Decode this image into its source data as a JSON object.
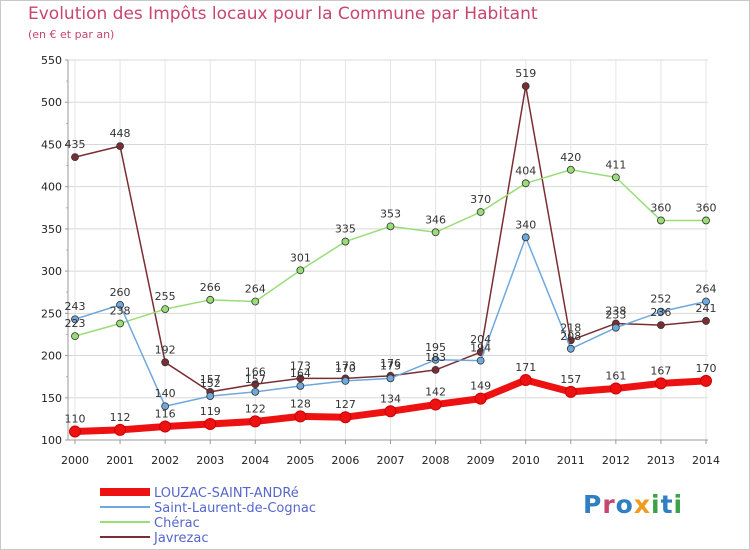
{
  "title": "Evolution des Impôts locaux pour la Commune par Habitant",
  "subtitle": "(en € et par an)",
  "logo": "Proxiti",
  "logo_colors": [
    "#2f7fc1",
    "#f29a1d",
    "#3aa345",
    "#c8456e"
  ],
  "chart_data": {
    "type": "line",
    "x": [
      "2000",
      "2001",
      "2002",
      "2003",
      "2004",
      "2005",
      "2006",
      "2007",
      "2008",
      "2009",
      "2010",
      "2011",
      "2012",
      "2013",
      "2014"
    ],
    "yticks": [
      "100",
      "150",
      "200",
      "250",
      "300",
      "350",
      "400",
      "450",
      "500",
      "550"
    ],
    "ylim": [
      100,
      550
    ],
    "grid": true,
    "legend_position": "bottom-left",
    "series": [
      {
        "name": "LOUZAC-SAINT-ANDRé",
        "color": "#ee1111",
        "values": [
          110,
          112,
          116,
          119,
          122,
          128,
          127,
          134,
          142,
          149,
          171,
          157,
          161,
          167,
          170
        ],
        "labels": [
          "110",
          "112",
          "116",
          "119",
          "122",
          "128",
          "127",
          "134",
          "142",
          "149",
          "171",
          "157",
          "161",
          "167",
          "170"
        ]
      },
      {
        "name": "Saint-Laurent-de-Cognac",
        "color": "#6fa8dc",
        "values": [
          243,
          260,
          140,
          152,
          157,
          164,
          170,
          173,
          195,
          194,
          340,
          208,
          233,
          252,
          264
        ],
        "labels": [
          "243",
          "260",
          "140",
          "152",
          "157",
          "164",
          "170",
          "173",
          "195",
          "194",
          "340",
          "208",
          "233",
          "252",
          "264"
        ]
      },
      {
        "name": "Chérac",
        "color": "#99dd77",
        "values": [
          223,
          238,
          255,
          266,
          264,
          301,
          335,
          353,
          346,
          370,
          404,
          420,
          411,
          360,
          360
        ],
        "labels": [
          "223",
          "238",
          "255",
          "266",
          "264",
          "301",
          "335",
          "353",
          "346",
          "370",
          "404",
          "420",
          "411",
          "360",
          "360"
        ]
      },
      {
        "name": "Javrezac",
        "color": "#7a2e33",
        "values": [
          435,
          448,
          192,
          157,
          166,
          173,
          173,
          176,
          183,
          204,
          519,
          218,
          238,
          236,
          241
        ],
        "labels": [
          "435",
          "448",
          "192",
          "157",
          "166",
          "173",
          "173",
          "176",
          "183",
          "204",
          "519",
          "218",
          "238",
          "236",
          "241"
        ]
      }
    ]
  }
}
